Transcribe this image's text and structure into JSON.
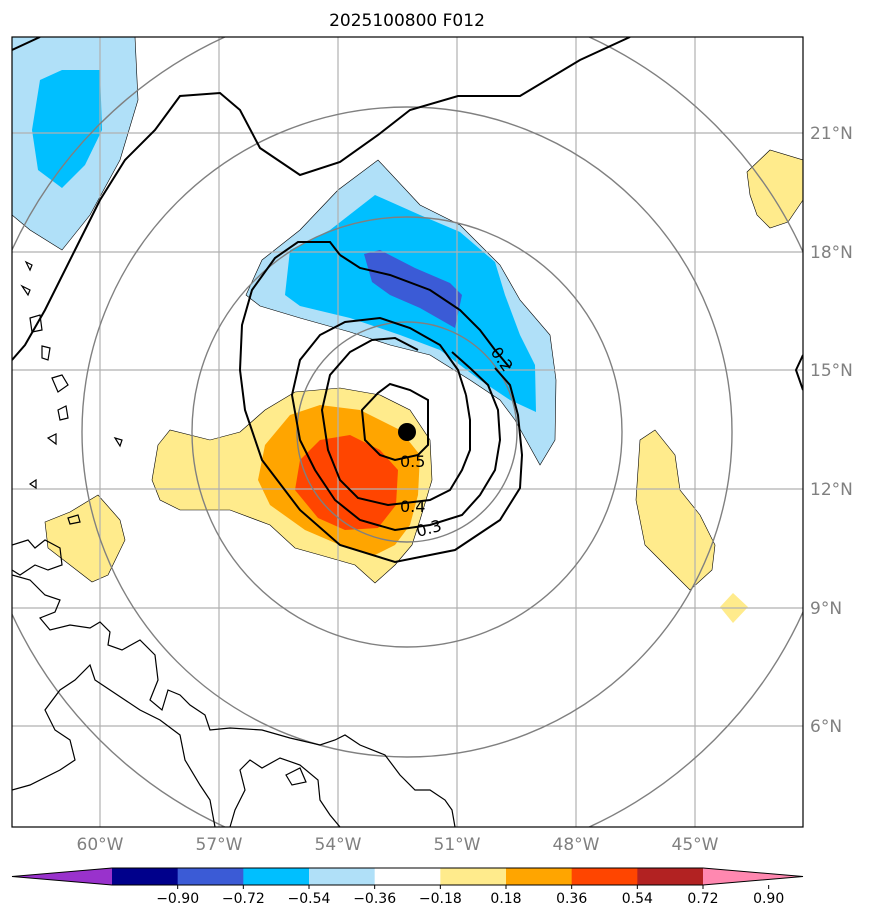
{
  "title": "2025100800 F012",
  "map": {
    "lon_labels": [
      "60°W",
      "57°W",
      "54°W",
      "51°W",
      "48°W",
      "45°W"
    ],
    "lat_labels": [
      "21°N",
      "18°N",
      "15°N",
      "12°N",
      "9°N",
      "6°N"
    ],
    "contour_labels": [
      "0.2",
      "0.5",
      "0.4",
      "0.3"
    ],
    "center_marker": {
      "lon": -52.3,
      "lat": 13.4
    }
  },
  "colorbar": {
    "ticks": [
      "−0.90",
      "−0.72",
      "−0.54",
      "−0.36",
      "−0.18",
      "0.18",
      "0.36",
      "0.54",
      "0.72",
      "0.90"
    ],
    "colors": [
      "#9932cc",
      "#00008b",
      "#3b5bd6",
      "#00bfff",
      "#b0e0f8",
      "#ffffff",
      "#ffeb8c",
      "#ffa500",
      "#ff4500",
      "#b22222",
      "#ff88b0"
    ]
  },
  "palette": {
    "light_blue": "#b0e0f8",
    "mid_blue": "#00bfff",
    "dark_blue": "#3b5bd6",
    "yellow": "#ffeb8c",
    "orange": "#ffa500",
    "red_orange": "#ff4500",
    "grid": "#b0b0b0",
    "range_ring": "#808080"
  }
}
